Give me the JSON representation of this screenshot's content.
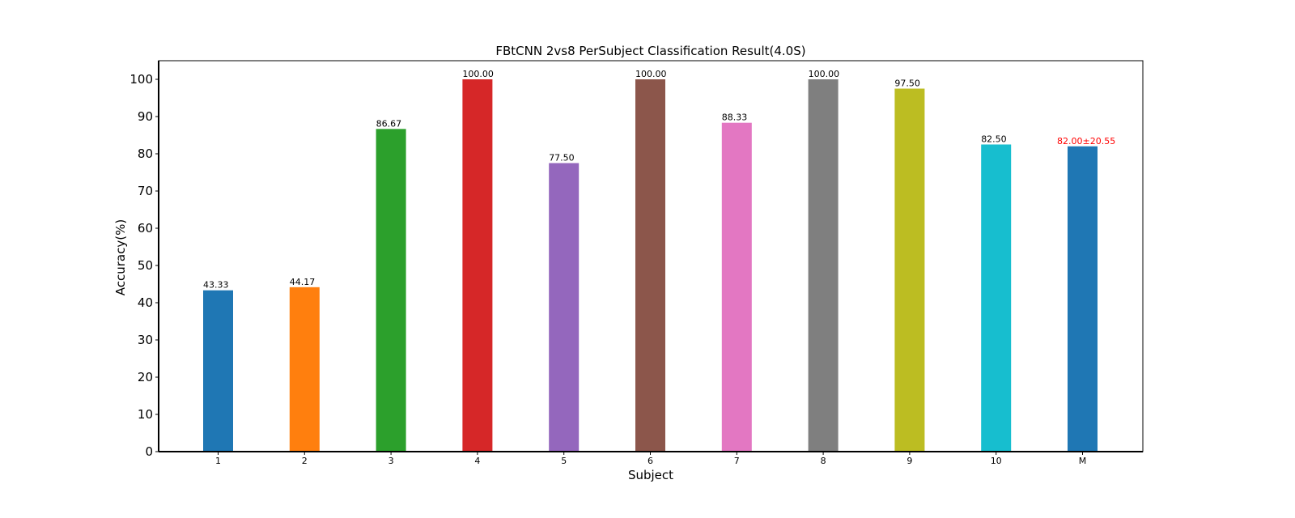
{
  "chart_data": {
    "type": "bar",
    "title": "FBtCNN 2vs8 PerSubject Classification Result(4.0S)",
    "xlabel": "Subject",
    "ylabel": "Accuracy(%)",
    "ylim": [
      0,
      105
    ],
    "yticks": [
      0,
      10,
      20,
      30,
      40,
      50,
      60,
      70,
      80,
      90,
      100
    ],
    "categories": [
      "1",
      "2",
      "3",
      "4",
      "5",
      "6",
      "7",
      "8",
      "9",
      "10",
      "M"
    ],
    "values": [
      43.33,
      44.17,
      86.67,
      100.0,
      77.5,
      100.0,
      88.33,
      100.0,
      97.5,
      82.5,
      82.0
    ],
    "value_labels": [
      "43.33",
      "44.17",
      "86.67",
      "100.00",
      "77.50",
      "100.00",
      "88.33",
      "100.00",
      "97.50",
      "82.50",
      "82.00±20.55"
    ],
    "colors": [
      "#1f77b4",
      "#ff7f0e",
      "#2ca02c",
      "#d62728",
      "#9467bd",
      "#8c564b",
      "#e377c2",
      "#7f7f7f",
      "#bcbd22",
      "#17becf",
      "#1f77b4"
    ],
    "value_label_colors": [
      "#000000",
      "#000000",
      "#000000",
      "#000000",
      "#000000",
      "#000000",
      "#000000",
      "#000000",
      "#000000",
      "#000000",
      "#ff0000"
    ],
    "grid": false,
    "legend": "none"
  }
}
